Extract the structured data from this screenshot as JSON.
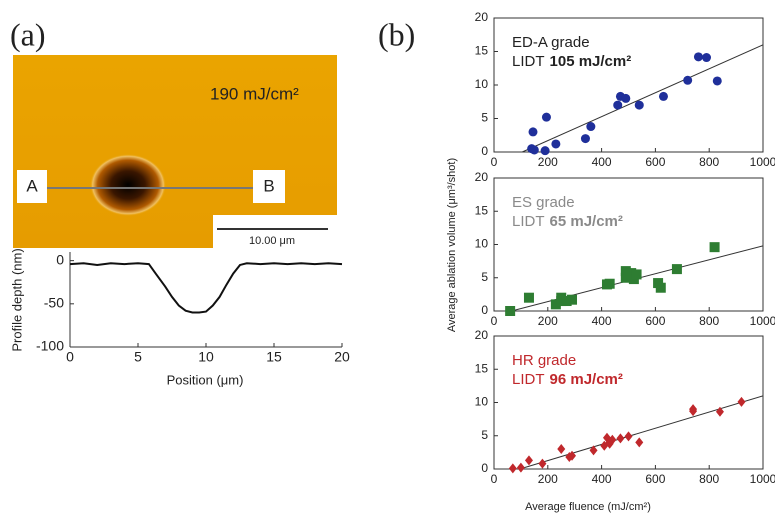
{
  "figure": {
    "panel_a_label": "(a)",
    "panel_b_label": "(b)",
    "image": {
      "fluence_label": "190 mJ/cm²",
      "point_a": "A",
      "point_b": "B",
      "scale_bar": "10.00 μm"
    }
  },
  "chart_data": [
    {
      "type": "line",
      "xlabel": "Position (μm)",
      "ylabel": "Profile depth (nm)",
      "x": [
        0,
        1,
        2,
        3,
        4,
        5,
        5.8,
        6.3,
        7,
        7.5,
        8,
        8.5,
        9,
        9.5,
        10,
        10.5,
        11,
        11.5,
        12,
        12.5,
        13,
        14,
        15,
        16,
        17,
        18,
        19,
        20
      ],
      "series": [
        {
          "color": "#111111",
          "values": [
            -4,
            -3,
            -5,
            -3,
            -4,
            -3,
            -4,
            -15,
            -30,
            -42,
            -52,
            -58,
            -60,
            -60,
            -59,
            -52,
            -42,
            -28,
            -15,
            -5,
            -3,
            -4,
            -3,
            -4,
            -3,
            -4,
            -3,
            -4
          ]
        }
      ],
      "xlim": [
        0,
        20
      ],
      "xticks": [
        0,
        5,
        10,
        15,
        20
      ],
      "ylim": [
        -100,
        10
      ],
      "yticks": [
        0,
        -50,
        -100
      ],
      "grid": false
    },
    {
      "type": "scatter",
      "ylabel": "Average ablation volume (μm³/shot)",
      "label": "ED-A grade",
      "lidt_prefix": "LIDT",
      "lidt_value": "105 mJ/cm²",
      "text_color": "#222222",
      "marker": "circle",
      "color": "#1f2f9a",
      "x": [
        140,
        150,
        145,
        195,
        190,
        230,
        340,
        360,
        460,
        470,
        490,
        540,
        630,
        720,
        760,
        790,
        830
      ],
      "values": [
        0.5,
        0.3,
        3,
        5.2,
        0.2,
        1.2,
        2,
        3.8,
        7,
        8.3,
        8,
        7,
        8.3,
        10.7,
        14.2,
        14.1,
        10.6
      ],
      "fit": {
        "x": [
          105,
          1000
        ],
        "y": [
          0,
          16
        ]
      },
      "xlim": [
        0,
        1000
      ],
      "xticks": [
        0,
        200,
        400,
        600,
        800,
        1000
      ],
      "ylim": [
        0,
        20
      ],
      "yticks": [
        0,
        5,
        10,
        15,
        20
      ],
      "grid": false
    },
    {
      "type": "scatter",
      "label": "ES grade",
      "lidt_prefix": "LIDT",
      "lidt_value": "65 mJ/cm²",
      "text_color": "#8a8a8a",
      "marker": "square",
      "color": "#2e7d32",
      "x": [
        60,
        130,
        230,
        250,
        250,
        270,
        290,
        420,
        430,
        490,
        490,
        510,
        520,
        530,
        610,
        620,
        680,
        820
      ],
      "values": [
        0,
        2,
        1,
        1.5,
        2,
        1.5,
        1.7,
        4,
        4.1,
        5,
        6,
        5.7,
        4.8,
        5.5,
        4.2,
        3.5,
        6.3,
        9.6
      ],
      "fit": {
        "x": [
          65,
          1000
        ],
        "y": [
          0,
          9.8
        ]
      },
      "xlim": [
        0,
        1000
      ],
      "xticks": [
        0,
        200,
        400,
        600,
        800,
        1000
      ],
      "ylim": [
        0,
        20
      ],
      "yticks": [
        0,
        5,
        10,
        15,
        20
      ],
      "grid": false
    },
    {
      "type": "scatter",
      "xlabel": "Average fluence (mJ/cm²)",
      "label": "HR grade",
      "lidt_prefix": "LIDT",
      "lidt_value": "96 mJ/cm²",
      "text_color": "#c0282c",
      "marker": "diamond",
      "color": "#c0282c",
      "x": [
        70,
        100,
        130,
        180,
        250,
        280,
        290,
        370,
        410,
        420,
        430,
        430,
        440,
        470,
        500,
        540,
        740,
        740,
        840,
        920
      ],
      "values": [
        0.1,
        0.2,
        1.3,
        0.8,
        3,
        1.8,
        2,
        2.8,
        3.5,
        4.7,
        4,
        3.8,
        4.4,
        4.6,
        4.9,
        4,
        9,
        8.7,
        8.6,
        10.1
      ],
      "fit": {
        "x": [
          96,
          1000
        ],
        "y": [
          0,
          11
        ]
      },
      "xlim": [
        0,
        1000
      ],
      "xticks": [
        0,
        200,
        400,
        600,
        800,
        1000
      ],
      "ylim": [
        0,
        20
      ],
      "yticks": [
        0,
        5,
        10,
        15,
        20
      ],
      "grid": false
    }
  ]
}
